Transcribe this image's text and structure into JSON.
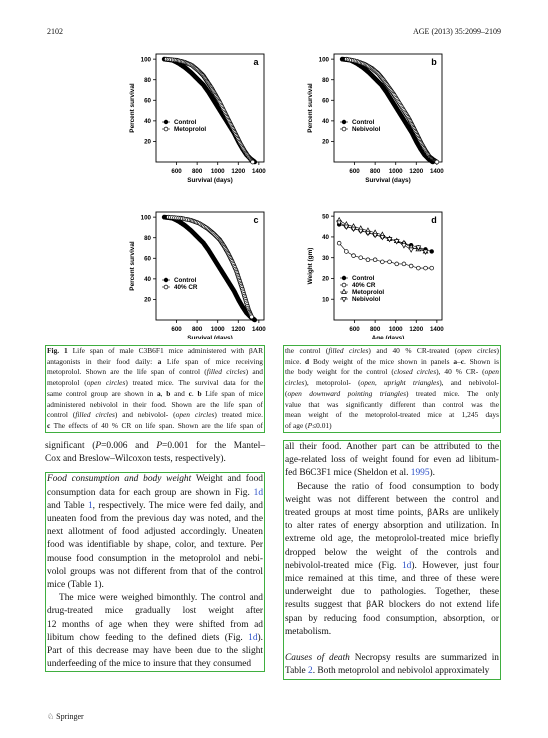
{
  "header": {
    "page_number": "2102",
    "journal": "AGE (2013) 35:2099–2109"
  },
  "chart_data": [
    {
      "type": "scatter",
      "panel": "a",
      "xlabel": "Survival (days)",
      "ylabel": "Percent survival",
      "xlim": [
        400,
        1450
      ],
      "ylim": [
        0,
        105
      ],
      "xticks": [
        "600",
        "800",
        "1000",
        "1200",
        "1400"
      ],
      "yticks": [
        "20",
        "40",
        "60",
        "80",
        "100"
      ],
      "legend": "bottom-left",
      "series": [
        {
          "name": "Control",
          "marker": "filled-circle",
          "x": [
            480,
            560,
            620,
            680,
            740,
            800,
            860,
            910,
            960,
            1010,
            1060,
            1110,
            1160,
            1200,
            1240,
            1280,
            1320,
            1360
          ],
          "y": [
            100,
            99,
            96,
            92,
            87,
            81,
            75,
            68,
            60,
            52,
            44,
            36,
            28,
            20,
            13,
            7,
            3,
            0
          ]
        },
        {
          "name": "Metoprolol",
          "marker": "open-circle",
          "x": [
            500,
            600,
            680,
            750,
            810,
            860,
            900,
            940,
            980,
            1020,
            1060,
            1100,
            1140,
            1180,
            1220,
            1260,
            1300,
            1340
          ],
          "y": [
            100,
            99,
            97,
            94,
            89,
            84,
            78,
            72,
            65,
            58,
            50,
            42,
            34,
            26,
            18,
            11,
            5,
            0
          ]
        }
      ]
    },
    {
      "type": "scatter",
      "panel": "b",
      "xlabel": "Survival (days)",
      "ylabel": "Percent survival",
      "xlim": [
        400,
        1450
      ],
      "ylim": [
        0,
        105
      ],
      "xticks": [
        "600",
        "800",
        "1000",
        "1200",
        "1400"
      ],
      "yticks": [
        "20",
        "40",
        "60",
        "80",
        "100"
      ],
      "legend": "bottom-left",
      "series": [
        {
          "name": "Control",
          "marker": "filled-circle",
          "x": [
            480,
            560,
            620,
            680,
            740,
            800,
            860,
            910,
            960,
            1010,
            1060,
            1110,
            1160,
            1200,
            1240,
            1280,
            1320,
            1360
          ],
          "y": [
            100,
            99,
            96,
            92,
            87,
            81,
            75,
            68,
            60,
            52,
            44,
            36,
            28,
            20,
            13,
            7,
            3,
            0
          ]
        },
        {
          "name": "Nebivolol",
          "marker": "open-circle",
          "x": [
            520,
            620,
            700,
            770,
            830,
            880,
            930,
            980,
            1030,
            1080,
            1130,
            1170,
            1210,
            1250,
            1290,
            1330,
            1370,
            1400
          ],
          "y": [
            100,
            98,
            95,
            91,
            86,
            80,
            73,
            66,
            58,
            50,
            42,
            34,
            26,
            18,
            11,
            5,
            2,
            0
          ]
        }
      ]
    },
    {
      "type": "scatter",
      "panel": "c",
      "xlabel": "Survival (days)",
      "ylabel": "Percent survival",
      "xlim": [
        400,
        1450
      ],
      "ylim": [
        0,
        105
      ],
      "xticks": [
        "600",
        "800",
        "1000",
        "1200",
        "1400"
      ],
      "yticks": [
        "20",
        "40",
        "60",
        "80",
        "100"
      ],
      "legend": "bottom-left",
      "series": [
        {
          "name": "Control",
          "marker": "filled-circle",
          "x": [
            480,
            560,
            620,
            680,
            740,
            800,
            860,
            910,
            960,
            1010,
            1060,
            1110,
            1160,
            1200,
            1240,
            1280,
            1320,
            1360
          ],
          "y": [
            100,
            99,
            96,
            92,
            87,
            81,
            75,
            68,
            60,
            52,
            44,
            36,
            28,
            20,
            13,
            7,
            3,
            0
          ]
        },
        {
          "name": "40% CR",
          "marker": "open-circle",
          "x": [
            520,
            640,
            740,
            820,
            900,
            960,
            1020,
            1060,
            1100,
            1140,
            1180,
            1210,
            1240,
            1270,
            1300,
            1330
          ],
          "y": [
            100,
            99,
            97,
            94,
            89,
            84,
            78,
            72,
            65,
            57,
            48,
            39,
            30,
            20,
            10,
            3
          ]
        }
      ]
    },
    {
      "type": "scatter",
      "panel": "d",
      "xlabel": "Age (days)",
      "ylabel": "Weight (gm)",
      "xlim": [
        400,
        1450
      ],
      "ylim": [
        0,
        52
      ],
      "xticks": [
        "600",
        "800",
        "1000",
        "1200",
        "1400"
      ],
      "yticks": [
        "10",
        "20",
        "30",
        "40",
        "50"
      ],
      "legend": "bottom-left",
      "series": [
        {
          "name": "Control",
          "marker": "filled-circle",
          "x": [
            450,
            520,
            590,
            660,
            730,
            800,
            870,
            940,
            1010,
            1080,
            1150,
            1220,
            1290,
            1350
          ],
          "y": [
            46,
            45,
            44,
            43,
            42,
            41,
            40,
            39,
            38,
            37,
            36,
            35,
            34,
            33
          ]
        },
        {
          "name": "40% CR",
          "marker": "open-circle",
          "x": [
            450,
            520,
            590,
            660,
            730,
            800,
            870,
            940,
            1010,
            1080,
            1150,
            1220,
            1290,
            1350
          ],
          "y": [
            37,
            33,
            31,
            30,
            29,
            29,
            28,
            28,
            27,
            27,
            26,
            25,
            25,
            25
          ]
        },
        {
          "name": "Metoprolol",
          "marker": "open-triangle-up",
          "x": [
            450,
            520,
            590,
            660,
            730,
            800,
            870,
            940,
            1010,
            1080,
            1150,
            1220,
            1290
          ],
          "y": [
            48,
            46,
            45,
            44,
            43,
            42,
            41,
            39,
            38,
            37,
            35,
            34,
            33
          ]
        },
        {
          "name": "Nebivolol",
          "marker": "open-triangle-down",
          "x": [
            450,
            520,
            590,
            660,
            730,
            800,
            870,
            940,
            1010,
            1080,
            1150,
            1220,
            1290
          ],
          "y": [
            47,
            45,
            44,
            43,
            42,
            41,
            40,
            39,
            38,
            36,
            34,
            35,
            33
          ]
        }
      ]
    }
  ],
  "caption_left": [
    [
      {
        "t": "Fig. 1",
        "b": true
      },
      {
        "t": " Life span of male C3B6F1 mice administered with βAR"
      }
    ],
    [
      {
        "t": "antagonists in their food daily: "
      },
      {
        "t": "a",
        "b": true
      },
      {
        "t": " Life span of mice receiving"
      }
    ],
    [
      {
        "t": "metoprolol. Shown are the life span of control ("
      },
      {
        "t": "filled circles",
        "i": true
      },
      {
        "t": ") and"
      }
    ],
    [
      {
        "t": "metoprolol ("
      },
      {
        "t": "open circles",
        "i": true
      },
      {
        "t": ") treated mice. The survival data for the"
      }
    ],
    [
      {
        "t": "same control group are shown in "
      },
      {
        "t": "a",
        "b": true
      },
      {
        "t": ", "
      },
      {
        "t": "b",
        "b": true
      },
      {
        "t": " and "
      },
      {
        "t": "c",
        "b": true
      },
      {
        "t": ". "
      },
      {
        "t": "b",
        "b": true
      },
      {
        "t": " Life span of mice"
      }
    ],
    [
      {
        "t": "administered nebivolol in their food. Shown are the life span of"
      }
    ],
    [
      {
        "t": "control ("
      },
      {
        "t": "filled circles",
        "i": true
      },
      {
        "t": ") and nebivolol- ("
      },
      {
        "t": "open circles",
        "i": true
      },
      {
        "t": ") treated mice."
      }
    ],
    [
      {
        "t": "c",
        "b": true
      },
      {
        "t": " The effects of 40 % CR on life span. Shown are the life span of"
      }
    ]
  ],
  "caption_right": [
    [
      {
        "t": "the control ("
      },
      {
        "t": "filled circles",
        "i": true
      },
      {
        "t": ") and 40 % CR-treated ("
      },
      {
        "t": "open circles",
        "i": true
      },
      {
        "t": ")"
      }
    ],
    [
      {
        "t": "mice. "
      },
      {
        "t": "d",
        "b": true
      },
      {
        "t": " Body weight of the mice shown in panels "
      },
      {
        "t": "a",
        "b": true
      },
      {
        "t": "–"
      },
      {
        "t": "c",
        "b": true
      },
      {
        "t": ". Shown is"
      }
    ],
    [
      {
        "t": "the body weight for the control ("
      },
      {
        "t": "closed circles",
        "i": true
      },
      {
        "t": "), 40 % CR- ("
      },
      {
        "t": "open",
        "i": true
      }
    ],
    [
      {
        "t": "circles",
        "i": true
      },
      {
        "t": "), metoprolol- ("
      },
      {
        "t": "open, upright triangles",
        "i": true
      },
      {
        "t": "), and nebivolol-"
      }
    ],
    [
      {
        "t": "(",
        "i": false
      },
      {
        "t": "open downward pointing triangles",
        "i": true
      },
      {
        "t": ") treated mice. The only"
      }
    ],
    [
      {
        "t": "value that was significantly different than control was the"
      }
    ],
    [
      {
        "t": "mean weight of the metoprolol-treated mice at 1,245 days"
      }
    ],
    [
      {
        "t": "of age ("
      },
      {
        "t": "P",
        "i": true
      },
      {
        "t": "≤0.01)"
      }
    ]
  ],
  "body_left": {
    "line0": [
      {
        "t": "significant ("
      },
      {
        "t": "P",
        "i": true
      },
      {
        "t": "=0.006 and "
      },
      {
        "t": "P",
        "i": true
      },
      {
        "t": "=0.001 for the Mantel–"
      }
    ],
    "line1": [
      {
        "t": "Cox and Breslow–Wilcoxon tests, respectively)."
      }
    ],
    "box_lines": [
      [
        {
          "t": "Food consumption and body weight",
          "i": true
        },
        {
          "t": " Weight and food"
        }
      ],
      [
        {
          "t": "consumption data for each group are shown in Fig. "
        },
        {
          "t": "1d",
          "l": true
        }
      ],
      [
        {
          "t": "and Table "
        },
        {
          "t": "1",
          "l": true
        },
        {
          "t": ", respectively. The mice were fed daily, and"
        }
      ],
      [
        {
          "t": "uneaten food from the previous day was noted, and the"
        }
      ],
      [
        {
          "t": "next allotment of food adjusted accordingly. Uneaten"
        }
      ],
      [
        {
          "t": "food was identifiable by shape, color, and texture. Per"
        }
      ],
      [
        {
          "t": "mouse food consumption in the metoprolol and nebi-"
        }
      ],
      [
        {
          "t": "volol groups was not different from that of the control"
        }
      ],
      [
        {
          "t": "mice (Table 1)."
        }
      ],
      [
        {
          "t": "The mice were weighed bimonthly. The control and",
          "ind": true
        }
      ],
      [
        {
          "t": "drug-treated mice gradually lost weight after"
        }
      ],
      [
        {
          "t": "12 months of age when they were shifted from ad"
        }
      ],
      [
        {
          "t": "libitum chow feeding to the defined diets (Fig. "
        },
        {
          "t": "1d",
          "l": true
        },
        {
          "t": ")."
        }
      ],
      [
        {
          "t": "Part of this decrease may have been due to the slight"
        }
      ],
      [
        {
          "t": "underfeeding of the mice to insure that they consumed"
        }
      ]
    ]
  },
  "body_right": {
    "box_lines": [
      [
        {
          "t": "all their food. Another part can be attributed to the"
        }
      ],
      [
        {
          "t": "age-related loss of weight found for even ad libitum-"
        }
      ],
      [
        {
          "t": "fed B6C3F1 mice (Sheldon et al. "
        },
        {
          "t": "1995",
          "l": true
        },
        {
          "t": ")."
        }
      ],
      [
        {
          "t": "Because the ratio of food consumption to body",
          "ind": true
        }
      ],
      [
        {
          "t": "weight was not different between the control and"
        }
      ],
      [
        {
          "t": "treated groups at most time points, βARs are unlikely"
        }
      ],
      [
        {
          "t": "to alter rates of energy absorption and utilization. In"
        }
      ],
      [
        {
          "t": "extreme old age, the metoprolol-treated mice briefly"
        }
      ],
      [
        {
          "t": "dropped below the weight of the controls and"
        }
      ],
      [
        {
          "t": "nebivolol-treated mice (Fig. "
        },
        {
          "t": "1d",
          "l": true
        },
        {
          "t": "). However, just four"
        }
      ],
      [
        {
          "t": "mice remained at this time, and three of these were"
        }
      ],
      [
        {
          "t": "underweight due to pathologies. Together, these"
        }
      ],
      [
        {
          "t": "results suggest that βAR blockers do not extend life"
        }
      ],
      [
        {
          "t": "span by reducing food consumption, absorption, or"
        }
      ],
      [
        {
          "t": "metabolism."
        }
      ],
      [
        {
          "t": ""
        }
      ],
      [
        {
          "t": "Causes of death",
          "i": true
        },
        {
          "t": " Necropsy results are summarized in"
        }
      ],
      [
        {
          "t": "Table "
        },
        {
          "t": "2",
          "l": true
        },
        {
          "t": ". Both metoprolol and nebivolol approximately"
        }
      ]
    ]
  },
  "footer": {
    "publisher": "Springer"
  }
}
